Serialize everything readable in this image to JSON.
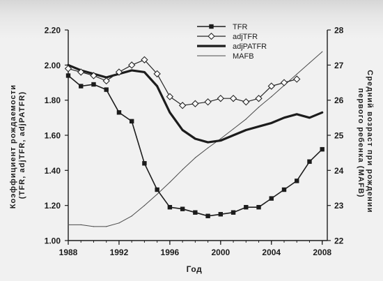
{
  "chart_data": {
    "type": "line",
    "xlabel": "Год",
    "ylabel": [
      "Коэффициент рождаемости",
      "(TFR, adjTFR, adjPATFR)"
    ],
    "y2label": [
      "Средний возраст при рождении",
      "первого ребенка (MAFB)"
    ],
    "x": [
      1988,
      1989,
      1990,
      1991,
      1992,
      1993,
      1994,
      1995,
      1996,
      1997,
      1998,
      1999,
      2000,
      2001,
      2002,
      2003,
      2004,
      2005,
      2006,
      2007,
      2008
    ],
    "xlim": [
      1988,
      2008.4
    ],
    "ylim": [
      1.0,
      2.2
    ],
    "y2lim": [
      22,
      28
    ],
    "xticks": [
      "1988",
      "1992",
      "1996",
      "2000",
      "2004",
      "2008"
    ],
    "yticks": [
      "1.00",
      "1.20",
      "1.40",
      "1.60",
      "1.80",
      "2.00",
      "2.20"
    ],
    "y2ticks": [
      "22",
      "23",
      "24",
      "25",
      "26",
      "27",
      "28"
    ],
    "grid": false,
    "legend_position": "top-center",
    "series": [
      {
        "name": "TFR",
        "axis": "left",
        "marker": "square",
        "line": "medium",
        "color": "#1c1c1c",
        "values": [
          1.94,
          1.88,
          1.89,
          1.86,
          1.73,
          1.68,
          1.44,
          1.29,
          1.19,
          1.18,
          1.16,
          1.14,
          1.15,
          1.16,
          1.19,
          1.19,
          1.24,
          1.29,
          1.34,
          1.45,
          1.52
        ]
      },
      {
        "name": "adjTFR",
        "axis": "left",
        "marker": "diamond",
        "line": "thin",
        "color": "#262626",
        "values": [
          1.98,
          1.96,
          1.94,
          1.91,
          1.96,
          2.0,
          2.03,
          1.95,
          1.82,
          1.77,
          1.78,
          1.79,
          1.81,
          1.81,
          1.79,
          1.81,
          1.88,
          1.9,
          1.92,
          null,
          null
        ]
      },
      {
        "name": "adjPATFR",
        "axis": "left",
        "marker": "none",
        "line": "thick",
        "color": "#1c1c1c",
        "values": [
          2.0,
          1.97,
          1.95,
          1.93,
          1.95,
          1.97,
          1.96,
          1.88,
          1.73,
          1.63,
          1.58,
          1.56,
          1.57,
          1.6,
          1.63,
          1.65,
          1.67,
          1.7,
          1.72,
          1.7,
          1.73
        ]
      },
      {
        "name": "MAFB",
        "axis": "right",
        "marker": "none",
        "line": "hairline",
        "color": "#4a4a4a",
        "values": [
          22.45,
          22.45,
          22.4,
          22.4,
          22.5,
          22.7,
          23.0,
          23.32,
          23.66,
          24.02,
          24.36,
          24.64,
          24.9,
          25.18,
          25.46,
          25.8,
          26.1,
          26.42,
          26.74,
          27.06,
          27.38
        ]
      }
    ]
  }
}
